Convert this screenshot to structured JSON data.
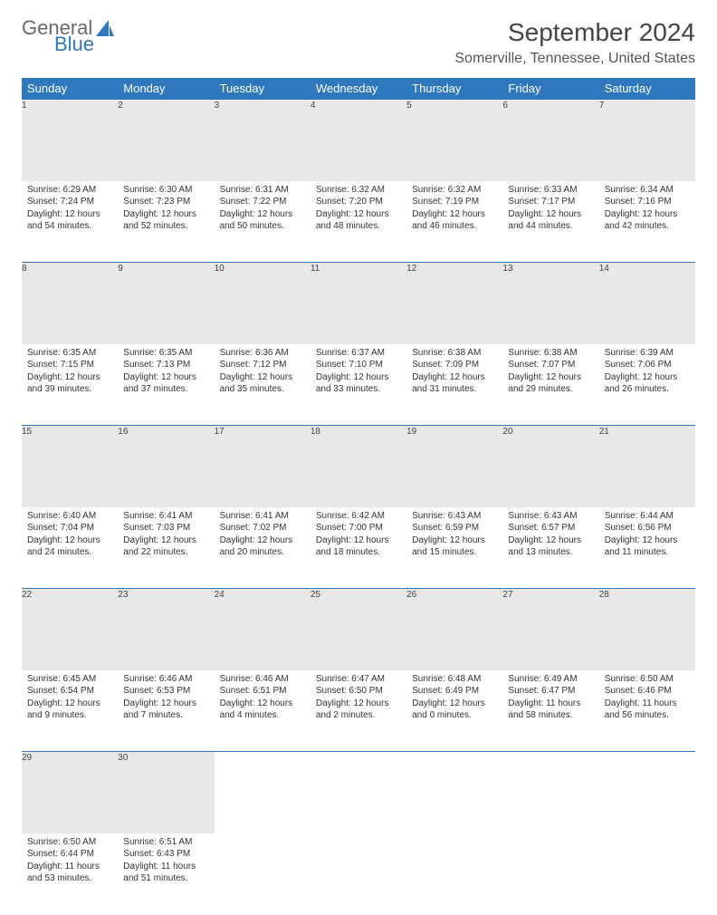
{
  "logo": {
    "text1": "General",
    "text2": "Blue",
    "sail_color": "#2f78bd"
  },
  "title": "September 2024",
  "location": "Somerville, Tennessee, United States",
  "header_bg": "#2f78bd",
  "daynum_bg": "#e8e8e8",
  "border_color": "#2f78bd",
  "font_family": "Arial",
  "day_headers": [
    "Sunday",
    "Monday",
    "Tuesday",
    "Wednesday",
    "Thursday",
    "Friday",
    "Saturday"
  ],
  "weeks": [
    [
      {
        "num": "1",
        "sunrise": "Sunrise: 6:29 AM",
        "sunset": "Sunset: 7:24 PM",
        "daylight": "Daylight: 12 hours and 54 minutes."
      },
      {
        "num": "2",
        "sunrise": "Sunrise: 6:30 AM",
        "sunset": "Sunset: 7:23 PM",
        "daylight": "Daylight: 12 hours and 52 minutes."
      },
      {
        "num": "3",
        "sunrise": "Sunrise: 6:31 AM",
        "sunset": "Sunset: 7:22 PM",
        "daylight": "Daylight: 12 hours and 50 minutes."
      },
      {
        "num": "4",
        "sunrise": "Sunrise: 6:32 AM",
        "sunset": "Sunset: 7:20 PM",
        "daylight": "Daylight: 12 hours and 48 minutes."
      },
      {
        "num": "5",
        "sunrise": "Sunrise: 6:32 AM",
        "sunset": "Sunset: 7:19 PM",
        "daylight": "Daylight: 12 hours and 46 minutes."
      },
      {
        "num": "6",
        "sunrise": "Sunrise: 6:33 AM",
        "sunset": "Sunset: 7:17 PM",
        "daylight": "Daylight: 12 hours and 44 minutes."
      },
      {
        "num": "7",
        "sunrise": "Sunrise: 6:34 AM",
        "sunset": "Sunset: 7:16 PM",
        "daylight": "Daylight: 12 hours and 42 minutes."
      }
    ],
    [
      {
        "num": "8",
        "sunrise": "Sunrise: 6:35 AM",
        "sunset": "Sunset: 7:15 PM",
        "daylight": "Daylight: 12 hours and 39 minutes."
      },
      {
        "num": "9",
        "sunrise": "Sunrise: 6:35 AM",
        "sunset": "Sunset: 7:13 PM",
        "daylight": "Daylight: 12 hours and 37 minutes."
      },
      {
        "num": "10",
        "sunrise": "Sunrise: 6:36 AM",
        "sunset": "Sunset: 7:12 PM",
        "daylight": "Daylight: 12 hours and 35 minutes."
      },
      {
        "num": "11",
        "sunrise": "Sunrise: 6:37 AM",
        "sunset": "Sunset: 7:10 PM",
        "daylight": "Daylight: 12 hours and 33 minutes."
      },
      {
        "num": "12",
        "sunrise": "Sunrise: 6:38 AM",
        "sunset": "Sunset: 7:09 PM",
        "daylight": "Daylight: 12 hours and 31 minutes."
      },
      {
        "num": "13",
        "sunrise": "Sunrise: 6:38 AM",
        "sunset": "Sunset: 7:07 PM",
        "daylight": "Daylight: 12 hours and 29 minutes."
      },
      {
        "num": "14",
        "sunrise": "Sunrise: 6:39 AM",
        "sunset": "Sunset: 7:06 PM",
        "daylight": "Daylight: 12 hours and 26 minutes."
      }
    ],
    [
      {
        "num": "15",
        "sunrise": "Sunrise: 6:40 AM",
        "sunset": "Sunset: 7:04 PM",
        "daylight": "Daylight: 12 hours and 24 minutes."
      },
      {
        "num": "16",
        "sunrise": "Sunrise: 6:41 AM",
        "sunset": "Sunset: 7:03 PM",
        "daylight": "Daylight: 12 hours and 22 minutes."
      },
      {
        "num": "17",
        "sunrise": "Sunrise: 6:41 AM",
        "sunset": "Sunset: 7:02 PM",
        "daylight": "Daylight: 12 hours and 20 minutes."
      },
      {
        "num": "18",
        "sunrise": "Sunrise: 6:42 AM",
        "sunset": "Sunset: 7:00 PM",
        "daylight": "Daylight: 12 hours and 18 minutes."
      },
      {
        "num": "19",
        "sunrise": "Sunrise: 6:43 AM",
        "sunset": "Sunset: 6:59 PM",
        "daylight": "Daylight: 12 hours and 15 minutes."
      },
      {
        "num": "20",
        "sunrise": "Sunrise: 6:43 AM",
        "sunset": "Sunset: 6:57 PM",
        "daylight": "Daylight: 12 hours and 13 minutes."
      },
      {
        "num": "21",
        "sunrise": "Sunrise: 6:44 AM",
        "sunset": "Sunset: 6:56 PM",
        "daylight": "Daylight: 12 hours and 11 minutes."
      }
    ],
    [
      {
        "num": "22",
        "sunrise": "Sunrise: 6:45 AM",
        "sunset": "Sunset: 6:54 PM",
        "daylight": "Daylight: 12 hours and 9 minutes."
      },
      {
        "num": "23",
        "sunrise": "Sunrise: 6:46 AM",
        "sunset": "Sunset: 6:53 PM",
        "daylight": "Daylight: 12 hours and 7 minutes."
      },
      {
        "num": "24",
        "sunrise": "Sunrise: 6:46 AM",
        "sunset": "Sunset: 6:51 PM",
        "daylight": "Daylight: 12 hours and 4 minutes."
      },
      {
        "num": "25",
        "sunrise": "Sunrise: 6:47 AM",
        "sunset": "Sunset: 6:50 PM",
        "daylight": "Daylight: 12 hours and 2 minutes."
      },
      {
        "num": "26",
        "sunrise": "Sunrise: 6:48 AM",
        "sunset": "Sunset: 6:49 PM",
        "daylight": "Daylight: 12 hours and 0 minutes."
      },
      {
        "num": "27",
        "sunrise": "Sunrise: 6:49 AM",
        "sunset": "Sunset: 6:47 PM",
        "daylight": "Daylight: 11 hours and 58 minutes."
      },
      {
        "num": "28",
        "sunrise": "Sunrise: 6:50 AM",
        "sunset": "Sunset: 6:46 PM",
        "daylight": "Daylight: 11 hours and 56 minutes."
      }
    ],
    [
      {
        "num": "29",
        "sunrise": "Sunrise: 6:50 AM",
        "sunset": "Sunset: 6:44 PM",
        "daylight": "Daylight: 11 hours and 53 minutes."
      },
      {
        "num": "30",
        "sunrise": "Sunrise: 6:51 AM",
        "sunset": "Sunset: 6:43 PM",
        "daylight": "Daylight: 11 hours and 51 minutes."
      },
      null,
      null,
      null,
      null,
      null
    ]
  ]
}
